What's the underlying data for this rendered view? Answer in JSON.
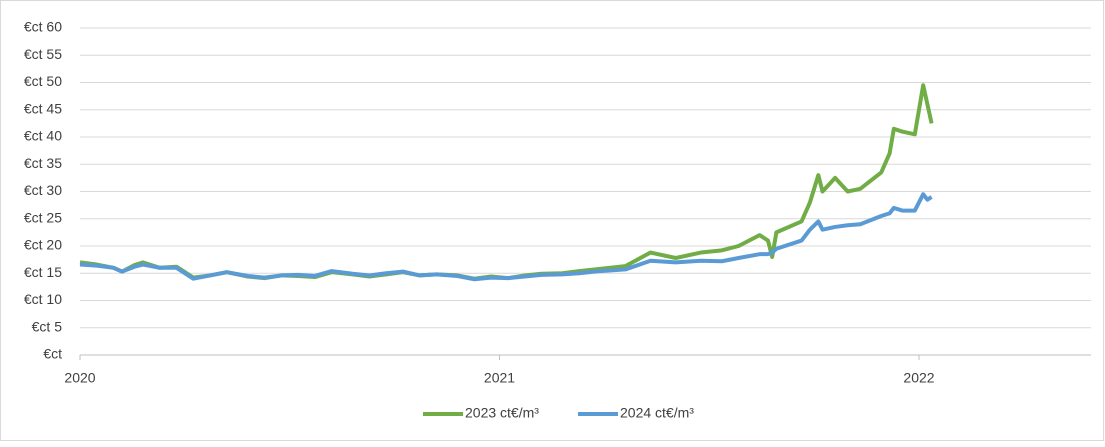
{
  "chart_data": {
    "type": "line",
    "xlim": [
      2020,
      2022.41
    ],
    "xticks": [
      2020,
      2021,
      2022
    ],
    "ylim": [
      0,
      60
    ],
    "yticks": [
      {
        "value": 0,
        "label": "€ct"
      },
      {
        "value": 5,
        "label": "€ct 5"
      },
      {
        "value": 10,
        "label": "€ct 10"
      },
      {
        "value": 15,
        "label": "€ct 15"
      },
      {
        "value": 20,
        "label": "€ct 20"
      },
      {
        "value": 25,
        "label": "€ct 25"
      },
      {
        "value": 30,
        "label": "€ct 30"
      },
      {
        "value": 35,
        "label": "€ct 35"
      },
      {
        "value": 40,
        "label": "€ct 40"
      },
      {
        "value": 45,
        "label": "€ct 45"
      },
      {
        "value": 50,
        "label": "€ct 50"
      },
      {
        "value": 55,
        "label": "€ct 55"
      },
      {
        "value": 60,
        "label": "€ct 60"
      }
    ],
    "grid": true,
    "legend": "bottom",
    "x": [
      2020.0,
      2020.04,
      2020.08,
      2020.1,
      2020.13,
      2020.15,
      2020.19,
      2020.23,
      2020.27,
      2020.31,
      2020.35,
      2020.4,
      2020.44,
      2020.48,
      2020.52,
      2020.56,
      2020.6,
      2020.65,
      2020.69,
      2020.73,
      2020.77,
      2020.81,
      2020.85,
      2020.9,
      2020.94,
      2020.98,
      2021.02,
      2021.06,
      2021.1,
      2021.15,
      2021.19,
      2021.24,
      2021.3,
      2021.36,
      2021.42,
      2021.48,
      2021.53,
      2021.57,
      2021.62,
      2021.64,
      2021.65,
      2021.66,
      2021.72,
      2021.74,
      2021.76,
      2021.77,
      2021.8,
      2021.83,
      2021.86,
      2021.91,
      2021.93,
      2021.94,
      2021.96,
      2021.99,
      2022.01,
      2022.02,
      2022.03
    ],
    "series": [
      {
        "name": "2023 ct€/m³",
        "color": "#70ad47",
        "values": [
          17,
          16.6,
          16.0,
          15.3,
          16.5,
          17,
          16,
          16.2,
          14.2,
          14.6,
          15.2,
          14.4,
          14.1,
          14.6,
          14.5,
          14.3,
          15.2,
          14.8,
          14.4,
          14.8,
          15.2,
          14.6,
          14.8,
          14.6,
          14,
          14.4,
          14.1,
          14.6,
          14.9,
          15,
          15.4,
          15.8,
          16.3,
          18.8,
          17.8,
          18.8,
          19.2,
          20,
          22,
          21,
          18,
          22.5,
          24.5,
          28,
          33,
          30,
          32.5,
          30,
          30.5,
          33.5,
          37,
          41.5,
          41,
          40.5,
          49.5,
          46,
          42.5
        ]
      },
      {
        "name": "2024 ct€/m³",
        "color": "#5b9bd5",
        "values": [
          16.6,
          16.4,
          16.0,
          15.3,
          16.2,
          16.6,
          16,
          16.0,
          14.0,
          14.6,
          15.2,
          14.5,
          14.2,
          14.6,
          14.7,
          14.5,
          15.4,
          14.9,
          14.6,
          15,
          15.3,
          14.6,
          14.8,
          14.5,
          13.9,
          14.2,
          14.1,
          14.4,
          14.7,
          14.8,
          15.0,
          15.4,
          15.7,
          17.3,
          17.0,
          17.3,
          17.2,
          17.8,
          18.5,
          18.5,
          18.8,
          19.5,
          21,
          23,
          24.5,
          23,
          23.5,
          23.8,
          24,
          25.5,
          26,
          27,
          26.5,
          26.5,
          29.5,
          28.5,
          29
        ]
      }
    ]
  }
}
